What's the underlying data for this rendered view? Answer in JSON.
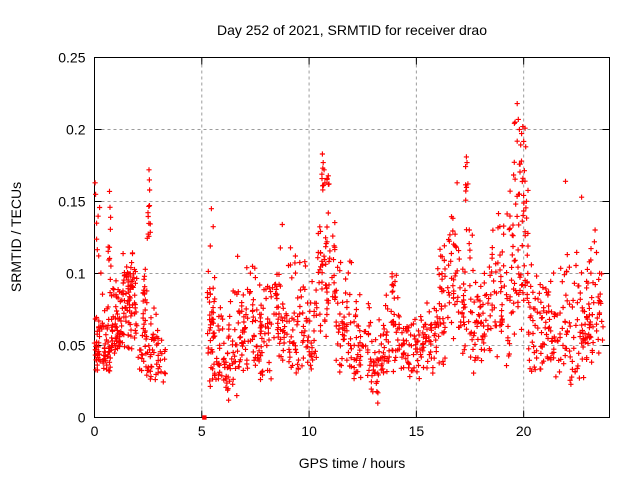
{
  "chart_data": {
    "type": "scatter",
    "title": "Day 252 of 2021, SRMTID for receiver drao",
    "xlabel": "GPS time / hours",
    "ylabel": "SRMTID / TECUs",
    "xlim": [
      0,
      24
    ],
    "ylim": [
      0,
      0.25
    ],
    "xticks": {
      "values": [
        0,
        5,
        10,
        15,
        20
      ],
      "labels": [
        "0",
        "5",
        "10",
        "15",
        "20"
      ]
    },
    "yticks": {
      "values": [
        0,
        0.05,
        0.1,
        0.15,
        0.2,
        0.25
      ],
      "labels": [
        "0",
        "0.05",
        "0.1",
        "0.15",
        "0.2",
        "0.25"
      ]
    },
    "grid": {
      "show": true,
      "color": "#9c9c9c",
      "dash": "3,3"
    },
    "border_color": "#000000",
    "marker": {
      "shape": "plus",
      "color": "#ff0000",
      "size": 5.2,
      "stroke_width": 1.15
    },
    "legend": "none",
    "on_axis_point": {
      "x": 5.12,
      "y": 0
    },
    "outlier_points": [
      [
        0.03,
        0.163
      ],
      [
        0.05,
        0.155
      ],
      [
        0.7,
        0.157
      ],
      [
        0.72,
        0.146
      ],
      [
        0.75,
        0.139
      ],
      [
        2.54,
        0.172
      ],
      [
        2.56,
        0.165
      ],
      [
        2.57,
        0.158
      ],
      [
        5.45,
        0.145
      ],
      [
        6.25,
        0.012
      ],
      [
        8.75,
        0.134
      ],
      [
        10.62,
        0.183
      ],
      [
        10.66,
        0.177
      ],
      [
        10.7,
        0.172
      ],
      [
        13.2,
        0.01
      ],
      [
        16.9,
        0.163
      ],
      [
        17.33,
        0.181
      ],
      [
        17.36,
        0.177
      ],
      [
        19.7,
        0.218
      ],
      [
        19.75,
        0.207
      ],
      [
        19.8,
        0.2
      ],
      [
        21.95,
        0.164
      ],
      [
        22.7,
        0.153
      ]
    ],
    "clusters_format": [
      "x_start_hours",
      "x_end_hours",
      "n_points",
      "y_min_TECUs",
      "y_max_TECUs",
      "bias_exponent"
    ],
    "clusters": [
      [
        0.0,
        0.35,
        34,
        0.03,
        0.08,
        1.3
      ],
      [
        0.05,
        0.3,
        7,
        0.085,
        0.155,
        1.0
      ],
      [
        0.35,
        0.75,
        40,
        0.03,
        0.095,
        1.4
      ],
      [
        0.62,
        0.78,
        8,
        0.095,
        0.135,
        1.0
      ],
      [
        0.75,
        1.25,
        55,
        0.04,
        0.1,
        1.4
      ],
      [
        1.25,
        1.95,
        60,
        0.045,
        0.125,
        1.3
      ],
      [
        1.35,
        1.9,
        28,
        0.082,
        0.107,
        1.0
      ],
      [
        1.95,
        2.45,
        36,
        0.032,
        0.115,
        1.5
      ],
      [
        2.46,
        2.62,
        10,
        0.1,
        0.16,
        1.0
      ],
      [
        2.4,
        3.05,
        42,
        0.026,
        0.085,
        1.5
      ],
      [
        3.05,
        3.3,
        12,
        0.024,
        0.058,
        1.2
      ],
      [
        5.25,
        5.6,
        26,
        0.028,
        0.14,
        1.3
      ],
      [
        5.35,
        6.05,
        48,
        0.018,
        0.1,
        1.5
      ],
      [
        6.05,
        6.65,
        42,
        0.015,
        0.095,
        1.4
      ],
      [
        6.65,
        7.45,
        58,
        0.028,
        0.115,
        1.5
      ],
      [
        7.45,
        8.25,
        56,
        0.025,
        0.11,
        1.5
      ],
      [
        8.25,
        8.75,
        32,
        0.038,
        0.132,
        1.2
      ],
      [
        8.75,
        9.6,
        56,
        0.028,
        0.125,
        1.5
      ],
      [
        9.6,
        10.35,
        48,
        0.03,
        0.12,
        1.4
      ],
      [
        10.35,
        11.25,
        62,
        0.05,
        0.155,
        1.1
      ],
      [
        10.55,
        10.95,
        12,
        0.15,
        0.18,
        1.0
      ],
      [
        11.25,
        12.05,
        52,
        0.03,
        0.115,
        1.6
      ],
      [
        12.05,
        12.85,
        46,
        0.025,
        0.092,
        1.5
      ],
      [
        12.85,
        13.45,
        36,
        0.01,
        0.075,
        1.3
      ],
      [
        13.45,
        14.25,
        48,
        0.03,
        0.105,
        1.4
      ],
      [
        13.85,
        14.08,
        8,
        0.083,
        0.103,
        1.0
      ],
      [
        14.25,
        15.25,
        56,
        0.025,
        0.082,
        1.4
      ],
      [
        15.25,
        15.95,
        46,
        0.03,
        0.088,
        1.4
      ],
      [
        15.95,
        16.45,
        36,
        0.035,
        0.125,
        1.3
      ],
      [
        16.45,
        17.05,
        40,
        0.05,
        0.16,
        1.1
      ],
      [
        17.05,
        17.65,
        38,
        0.035,
        0.145,
        1.3
      ],
      [
        17.28,
        17.48,
        6,
        0.15,
        0.178,
        1.0
      ],
      [
        17.65,
        18.45,
        52,
        0.03,
        0.132,
        1.4
      ],
      [
        18.45,
        19.35,
        56,
        0.035,
        0.15,
        1.4
      ],
      [
        19.35,
        20.2,
        72,
        0.05,
        0.2,
        1.2
      ],
      [
        19.55,
        20.1,
        14,
        0.165,
        0.215,
        1.0
      ],
      [
        20.2,
        21.05,
        52,
        0.03,
        0.125,
        1.5
      ],
      [
        21.05,
        21.95,
        52,
        0.028,
        0.12,
        1.5
      ],
      [
        21.95,
        22.85,
        56,
        0.02,
        0.135,
        1.5
      ],
      [
        22.85,
        23.45,
        48,
        0.035,
        0.145,
        1.4
      ],
      [
        23.45,
        23.7,
        16,
        0.04,
        0.12,
        1.3
      ]
    ]
  }
}
